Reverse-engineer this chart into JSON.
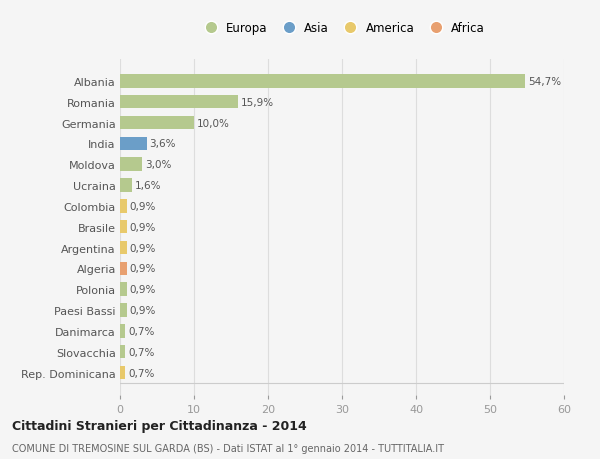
{
  "categories": [
    "Albania",
    "Romania",
    "Germania",
    "India",
    "Moldova",
    "Ucraina",
    "Colombia",
    "Brasile",
    "Argentina",
    "Algeria",
    "Polonia",
    "Paesi Bassi",
    "Danimarca",
    "Slovacchia",
    "Rep. Dominicana"
  ],
  "values": [
    54.7,
    15.9,
    10.0,
    3.6,
    3.0,
    1.6,
    0.9,
    0.9,
    0.9,
    0.9,
    0.9,
    0.9,
    0.7,
    0.7,
    0.7
  ],
  "labels": [
    "54,7%",
    "15,9%",
    "10,0%",
    "3,6%",
    "3,0%",
    "1,6%",
    "0,9%",
    "0,9%",
    "0,9%",
    "0,9%",
    "0,9%",
    "0,9%",
    "0,7%",
    "0,7%",
    "0,7%"
  ],
  "continent": [
    "Europa",
    "Europa",
    "Europa",
    "Asia",
    "Europa",
    "Europa",
    "America",
    "America",
    "America",
    "Africa",
    "Europa",
    "Europa",
    "Europa",
    "Europa",
    "America"
  ],
  "colors": {
    "Europa": "#b5c98e",
    "Asia": "#6b9ec8",
    "America": "#e8c96b",
    "Africa": "#e8a070"
  },
  "legend_order": [
    "Europa",
    "Asia",
    "America",
    "Africa"
  ],
  "legend_colors": [
    "#b5c98e",
    "#6b9ec8",
    "#e8c96b",
    "#e8a070"
  ],
  "xlim": [
    0,
    60
  ],
  "xticks": [
    0,
    10,
    20,
    30,
    40,
    50,
    60
  ],
  "title": "Cittadini Stranieri per Cittadinanza - 2014",
  "subtitle": "COMUNE DI TREMOSINE SUL GARDA (BS) - Dati ISTAT al 1° gennaio 2014 - TUTTITALIA.IT",
  "bg_color": "#f5f5f5",
  "grid_color": "#dddddd",
  "bar_height": 0.65
}
